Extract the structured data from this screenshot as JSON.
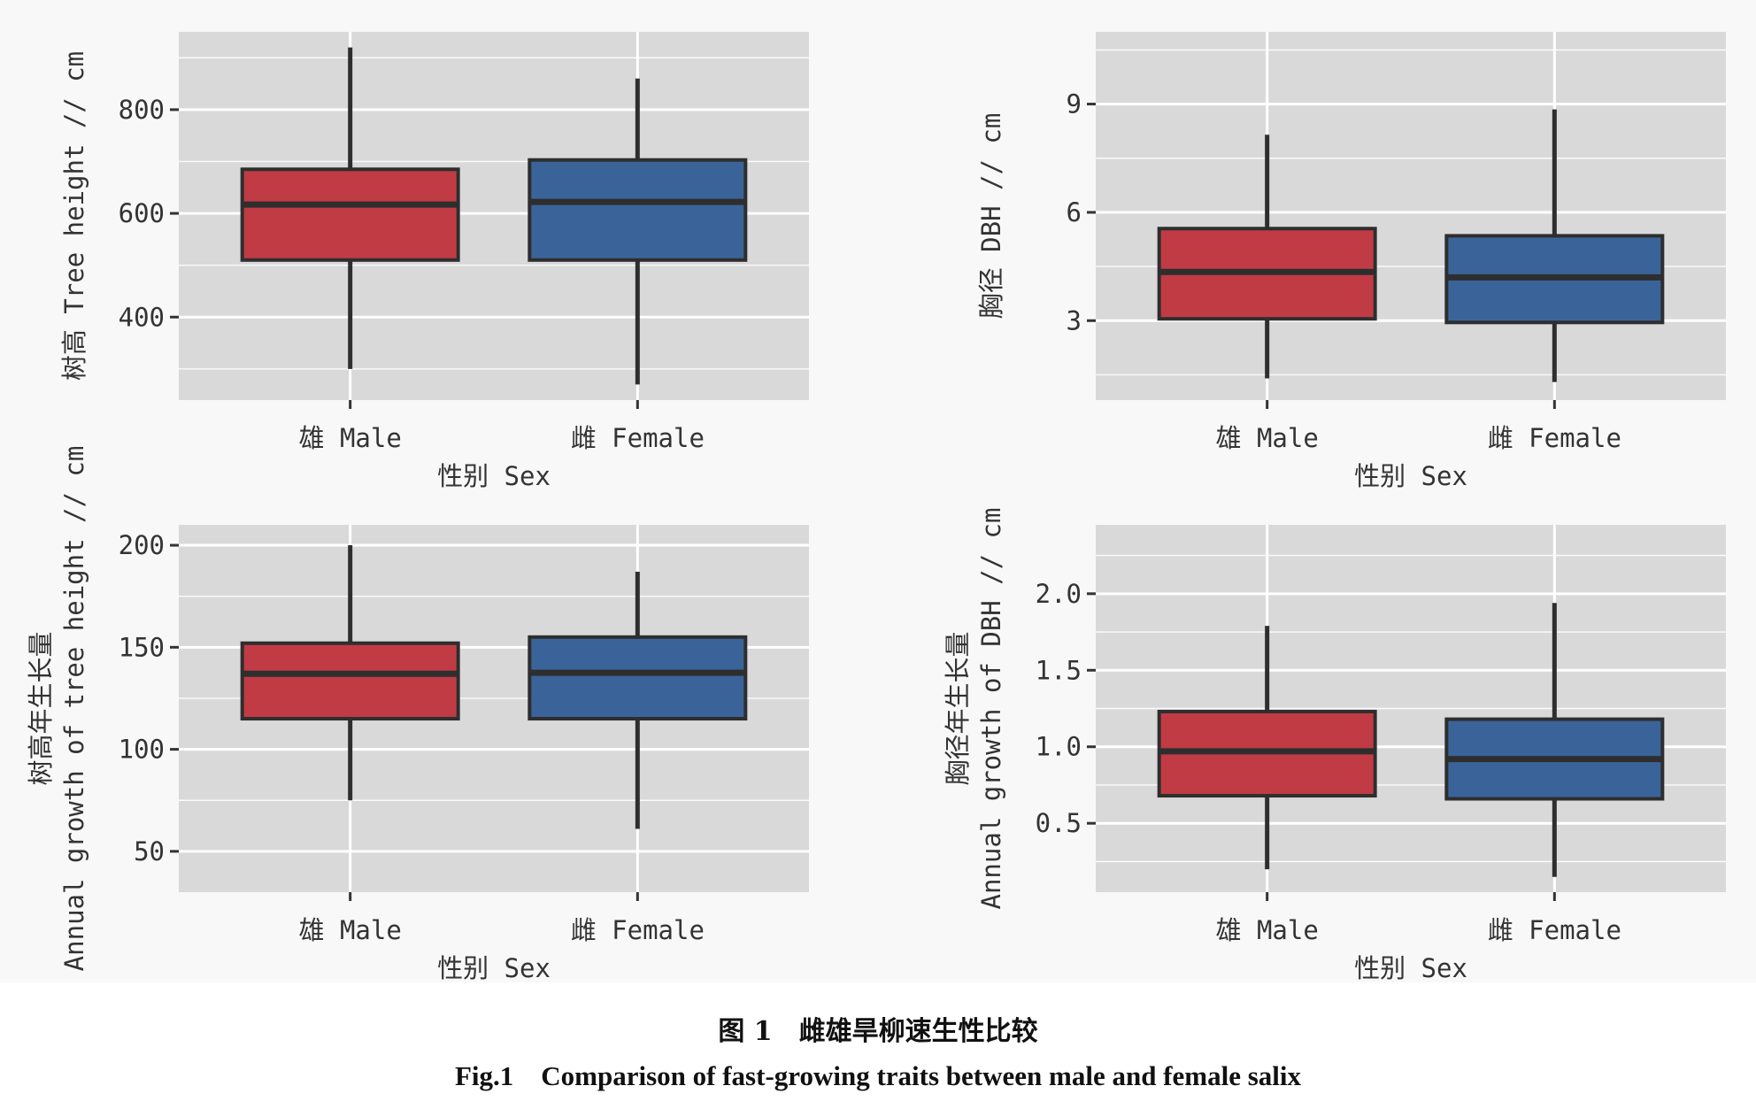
{
  "colors": {
    "male": "#c13b44",
    "female": "#3a6499",
    "panel": "#d9d9d9"
  },
  "caption": {
    "cn": "图 1 雌雄旱柳速生性比较",
    "en": "Fig.1 Comparison of fast-growing traits between male and female salix"
  },
  "chart_data": [
    {
      "type": "boxplot",
      "xlabel": "性别 Sex",
      "ylabel": [
        "树高 Tree height // cm"
      ],
      "categories": [
        "雄 Male",
        "雌 Female"
      ],
      "ylim": [
        240,
        950
      ],
      "yticks": [
        400,
        600,
        800
      ],
      "grid": true,
      "boxes": [
        {
          "category": "雄 Male",
          "min": 300,
          "q1": 510,
          "median": 617,
          "q3": 685,
          "max": 920,
          "color": "#c13b44"
        },
        {
          "category": "雌 Female",
          "min": 270,
          "q1": 510,
          "median": 622,
          "q3": 703,
          "max": 860,
          "color": "#3a6499"
        }
      ]
    },
    {
      "type": "boxplot",
      "xlabel": "性别 Sex",
      "ylabel": [
        "胸径 DBH // cm"
      ],
      "categories": [
        "雄 Male",
        "雌 Female"
      ],
      "ylim": [
        0.8,
        11
      ],
      "yticks": [
        3,
        6,
        9
      ],
      "grid": true,
      "boxes": [
        {
          "category": "雄 Male",
          "min": 1.4,
          "q1": 3.05,
          "median": 4.35,
          "q3": 5.55,
          "max": 8.15,
          "color": "#c13b44"
        },
        {
          "category": "雌 Female",
          "min": 1.3,
          "q1": 2.95,
          "median": 4.2,
          "q3": 5.35,
          "max": 8.85,
          "color": "#3a6499"
        }
      ]
    },
    {
      "type": "boxplot",
      "xlabel": "性别 Sex",
      "ylabel": [
        "树高年生长量",
        "Annual growth of tree height // cm"
      ],
      "categories": [
        "雄 Male",
        "雌 Female"
      ],
      "ylim": [
        30,
        210
      ],
      "yticks": [
        50,
        100,
        150,
        200
      ],
      "grid": true,
      "boxes": [
        {
          "category": "雄 Male",
          "min": 75,
          "q1": 115,
          "median": 137,
          "q3": 152,
          "max": 200,
          "color": "#c13b44"
        },
        {
          "category": "雌 Female",
          "min": 61,
          "q1": 115,
          "median": 137.5,
          "q3": 155,
          "max": 187,
          "color": "#3a6499"
        }
      ]
    },
    {
      "type": "boxplot",
      "xlabel": "性别 Sex",
      "ylabel": [
        "胸径年生长量",
        "Annual growth of DBH // cm"
      ],
      "categories": [
        "雄 Male",
        "雌 Female"
      ],
      "ylim": [
        0.05,
        2.45
      ],
      "yticks": [
        0.5,
        1.0,
        1.5,
        2.0
      ],
      "yticklabels": [
        "0.5",
        "1.0",
        "1.5",
        "2.0"
      ],
      "grid": true,
      "boxes": [
        {
          "category": "雄 Male",
          "min": 0.2,
          "q1": 0.68,
          "median": 0.97,
          "q3": 1.23,
          "max": 1.79,
          "color": "#c13b44"
        },
        {
          "category": "雌 Female",
          "min": 0.15,
          "q1": 0.66,
          "median": 0.92,
          "q3": 1.18,
          "max": 1.94,
          "color": "#3a6499"
        }
      ]
    }
  ]
}
